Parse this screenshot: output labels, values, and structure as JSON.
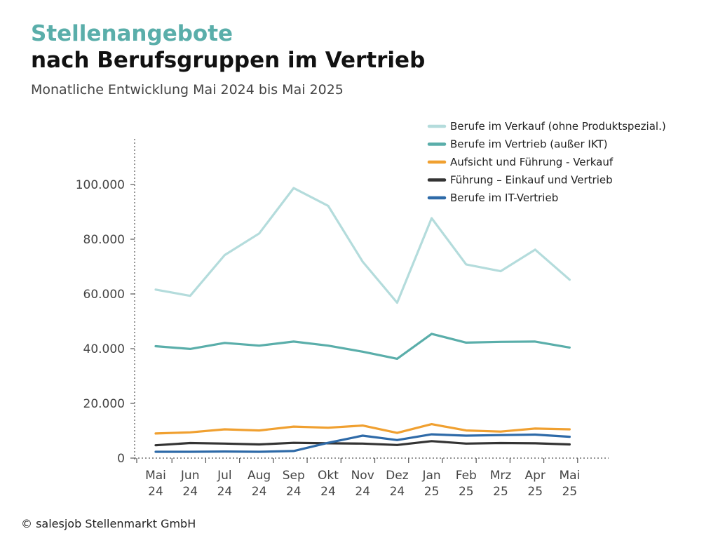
{
  "header": {
    "title_line1": "Stellenangebote",
    "title_line2": "nach Berufsgruppen im Vertrieb",
    "subtitle": "Monatliche Entwicklung Mai 2024 bis Mai 2025"
  },
  "footer": {
    "copyright": "© salesjob Stellenmarkt GmbH"
  },
  "chart_data": {
    "type": "line",
    "title": "Stellenangebote nach Berufsgruppen im Vertrieb",
    "subtitle": "Monatliche Entwicklung Mai 2024 bis Mai 2025",
    "xlabel": "",
    "ylabel": "",
    "ylim": [
      0,
      115000
    ],
    "grid": false,
    "legend_position": "top-right",
    "categories": [
      [
        "Mai",
        "24"
      ],
      [
        "Jun",
        "24"
      ],
      [
        "Jul",
        "24"
      ],
      [
        "Aug",
        "24"
      ],
      [
        "Sep",
        "24"
      ],
      [
        "Okt",
        "24"
      ],
      [
        "Nov",
        "24"
      ],
      [
        "Dez",
        "24"
      ],
      [
        "Jan",
        "25"
      ],
      [
        "Feb",
        "25"
      ],
      [
        "Mrz",
        "25"
      ],
      [
        "Apr",
        "25"
      ],
      [
        "Mai",
        "25"
      ]
    ],
    "y_ticks": [
      {
        "value": 0,
        "label": "0"
      },
      {
        "value": 20000,
        "label": "20.000"
      },
      {
        "value": 40000,
        "label": "40.000"
      },
      {
        "value": 60000,
        "label": "60.000"
      },
      {
        "value": 80000,
        "label": "80.000"
      },
      {
        "value": 100000,
        "label": "100.000"
      }
    ],
    "series": [
      {
        "name": "Berufe im Verkauf (ohne Produktspezial.)",
        "color": "#b4dcdc",
        "values": [
          61600,
          59300,
          74200,
          82100,
          98700,
          92200,
          71800,
          56800,
          87700,
          70800,
          68300,
          76200,
          65200
        ]
      },
      {
        "name": "Berufe im Vertrieb (außer IKT)",
        "color": "#5aaeaa",
        "values": [
          40900,
          39900,
          42100,
          41100,
          42600,
          41100,
          38900,
          36300,
          45400,
          42200,
          42500,
          42600,
          40400
        ]
      },
      {
        "name": "Aufsicht und Führung - Verkauf",
        "color": "#f0a030",
        "values": [
          9000,
          9400,
          10500,
          10100,
          11500,
          11100,
          11900,
          9200,
          12400,
          10100,
          9700,
          10800,
          10500
        ]
      },
      {
        "name": "Führung – Einkauf und Vertrieb",
        "color": "#333333",
        "values": [
          4700,
          5500,
          5300,
          5000,
          5600,
          5400,
          5300,
          4800,
          6200,
          5300,
          5500,
          5400,
          5000
        ]
      },
      {
        "name": "Berufe im IT-Vertrieb",
        "color": "#2e6aa8",
        "values": [
          2300,
          2300,
          2400,
          2300,
          2600,
          5600,
          8200,
          6600,
          8700,
          8200,
          8400,
          8600,
          7800
        ]
      }
    ]
  }
}
